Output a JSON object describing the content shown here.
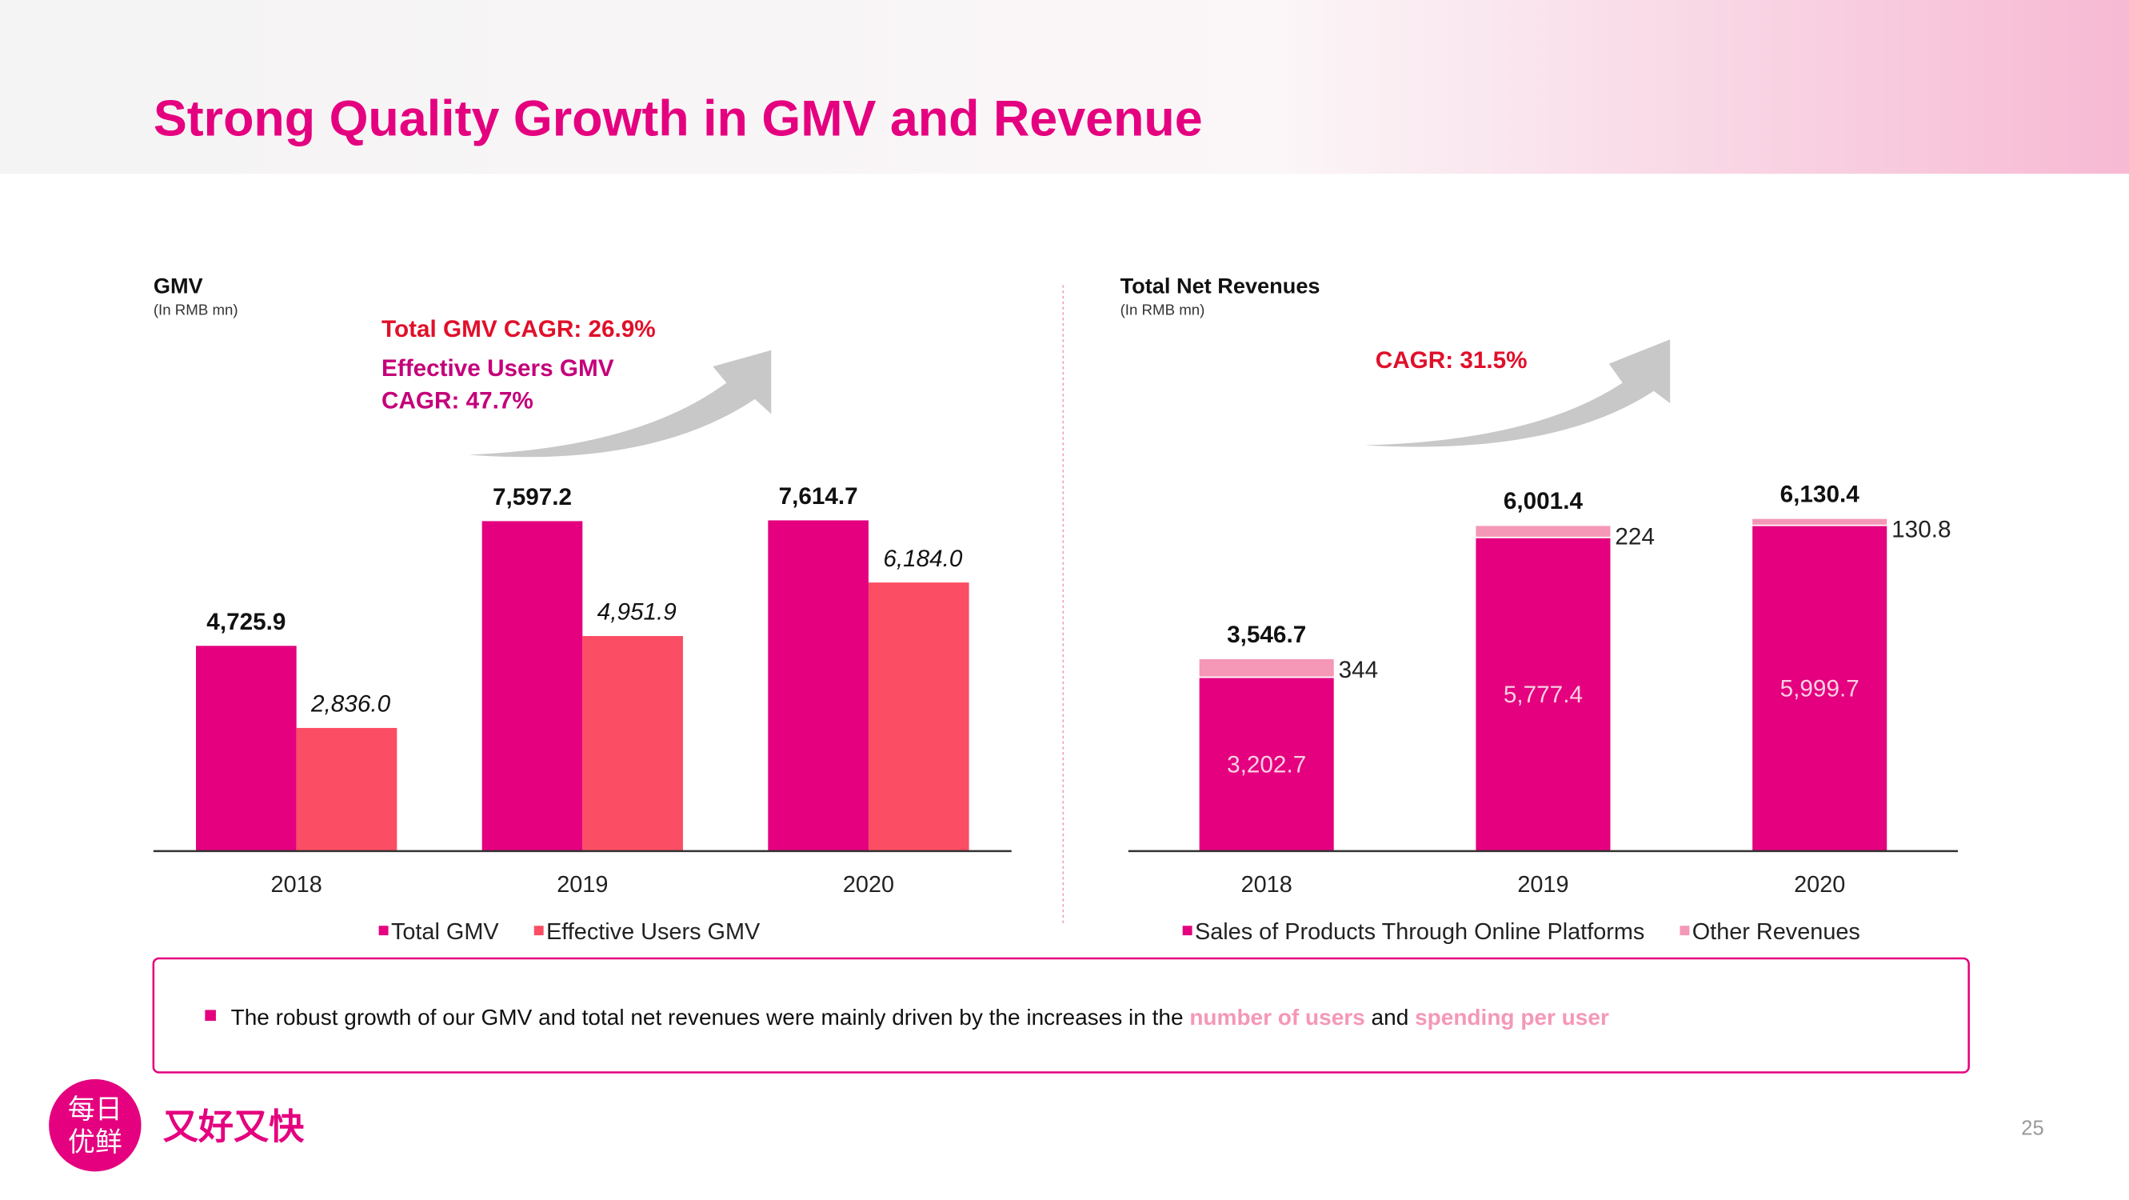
{
  "header": {
    "title": "Strong Quality Growth in GMV and Revenue"
  },
  "chart_data": [
    {
      "type": "bar",
      "title": "GMV",
      "subtitle": "(In RMB mn)",
      "annotations": [
        "Total GMV CAGR: 26.9%",
        "Effective Users GMV",
        "CAGR: 47.7%"
      ],
      "categories": [
        "2018",
        "2019",
        "2020"
      ],
      "series": [
        {
          "name": "Total GMV",
          "color": "#e4007f",
          "values": [
            4725.9,
            7597.2,
            7614.7
          ],
          "value_labels": [
            "4,725.9",
            "7,597.2",
            "7,614.7"
          ]
        },
        {
          "name": "Effective Users GMV",
          "color": "#fb4d64",
          "values": [
            2836.0,
            4951.9,
            6184.0
          ],
          "value_labels": [
            "2,836.0",
            "4,951.9",
            "6,184.0"
          ]
        }
      ],
      "ylim": [
        0,
        8000
      ]
    },
    {
      "type": "bar",
      "stacked": true,
      "title": "Total Net Revenues",
      "subtitle": "(In RMB mn)",
      "annotations": [
        "CAGR: 31.5%"
      ],
      "categories": [
        "2018",
        "2019",
        "2020"
      ],
      "series": [
        {
          "name": "Sales of Products Through Online Platforms",
          "color": "#e4007f",
          "values": [
            3202.7,
            5777.4,
            5999.7
          ],
          "value_labels": [
            "3,202.7",
            "5,777.4",
            "5,999.7"
          ]
        },
        {
          "name": "Other Revenues",
          "color": "#f597b6",
          "values": [
            344.0,
            224.0,
            130.8
          ]
        }
      ],
      "totals": [
        3546.7,
        6001.4,
        6130.4
      ],
      "total_labels": [
        "3,546.7",
        "6,001.4",
        "6,130.4"
      ],
      "ylim": [
        0,
        7000
      ]
    }
  ],
  "note": {
    "parts": [
      "The robust growth of our GMV and total net revenues were mainly driven by the increases in the ",
      "number of users",
      " and ",
      "spending per user"
    ]
  },
  "footer": {
    "logo": [
      "每日",
      "优鲜"
    ],
    "slogan": "又好又快",
    "page_number": "25"
  }
}
